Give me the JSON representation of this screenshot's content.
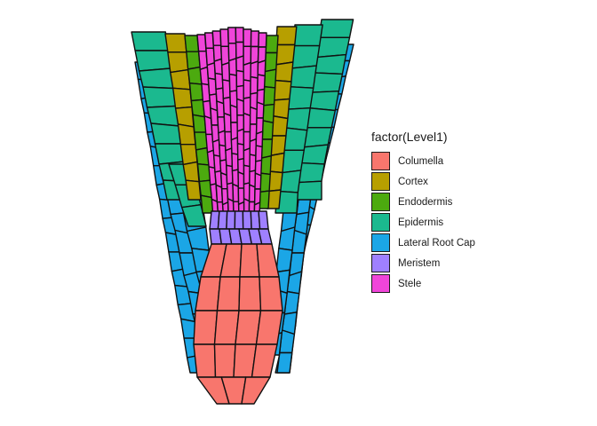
{
  "legend": {
    "title": "factor(Level1)",
    "items": [
      {
        "label": "Columella",
        "color": "#F8766D"
      },
      {
        "label": "Cortex",
        "color": "#B79F00"
      },
      {
        "label": "Endodermis",
        "color": "#4CAA0F"
      },
      {
        "label": "Epidermis",
        "color": "#1BB98F"
      },
      {
        "label": "Lateral Root Cap",
        "color": "#1BA6E6"
      },
      {
        "label": "Meristem",
        "color": "#9F80FF"
      },
      {
        "label": "Stele",
        "color": "#F045D9"
      }
    ]
  },
  "stroke_color": "#111111"
}
